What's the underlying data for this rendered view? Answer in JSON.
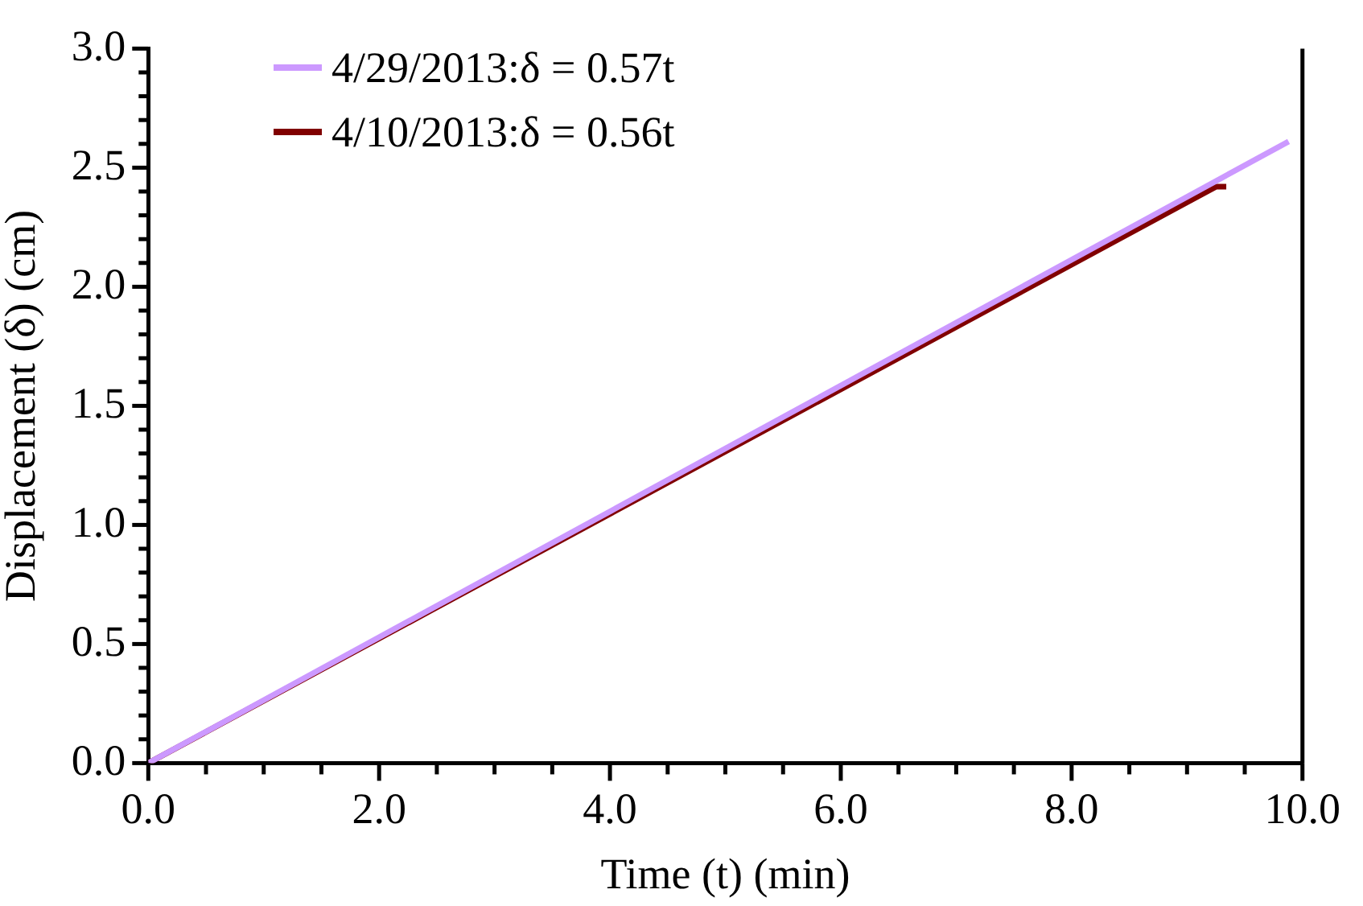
{
  "chart_data": {
    "type": "line",
    "xlabel": "Time (t) (min)",
    "ylabel": "Displacement (δ) (cm)",
    "legend": "top left",
    "grid": false,
    "marker": "none",
    "line_style": "solid",
    "xlim": [
      0,
      10
    ],
    "ylim": [
      0,
      3
    ],
    "xticks": [
      {
        "value": 0,
        "label": "0.0"
      },
      {
        "value": 0.5,
        "label": null
      },
      {
        "value": 1,
        "label": null
      },
      {
        "value": 1.5,
        "label": null
      },
      {
        "value": 2,
        "label": "2.0"
      },
      {
        "value": 2.5,
        "label": null
      },
      {
        "value": 3,
        "label": null
      },
      {
        "value": 3.5,
        "label": null
      },
      {
        "value": 4,
        "label": "4.0"
      },
      {
        "value": 4.5,
        "label": null
      },
      {
        "value": 5,
        "label": null
      },
      {
        "value": 5.5,
        "label": null
      },
      {
        "value": 6,
        "label": "6.0"
      },
      {
        "value": 6.5,
        "label": null
      },
      {
        "value": 7,
        "label": null
      },
      {
        "value": 7.5,
        "label": null
      },
      {
        "value": 8,
        "label": "8.0"
      },
      {
        "value": 8.5,
        "label": null
      },
      {
        "value": 9,
        "label": null
      },
      {
        "value": 9.5,
        "label": null
      },
      {
        "value": 10,
        "label": "10.0"
      }
    ],
    "yticks": [
      {
        "value": 0,
        "label": "0.0"
      },
      {
        "value": 0.1,
        "label": null
      },
      {
        "value": 0.2,
        "label": null
      },
      {
        "value": 0.3,
        "label": null
      },
      {
        "value": 0.4,
        "label": null
      },
      {
        "value": 0.5,
        "label": "0.5"
      },
      {
        "value": 0.6,
        "label": null
      },
      {
        "value": 0.7,
        "label": null
      },
      {
        "value": 0.8,
        "label": null
      },
      {
        "value": 0.9,
        "label": null
      },
      {
        "value": 1,
        "label": "1.0"
      },
      {
        "value": 1.1,
        "label": null
      },
      {
        "value": 1.2,
        "label": null
      },
      {
        "value": 1.3,
        "label": null
      },
      {
        "value": 1.4,
        "label": null
      },
      {
        "value": 1.5,
        "label": "1.5"
      },
      {
        "value": 1.6,
        "label": null
      },
      {
        "value": 1.7,
        "label": null
      },
      {
        "value": 1.8,
        "label": null
      },
      {
        "value": 1.9,
        "label": null
      },
      {
        "value": 2,
        "label": "2.0"
      },
      {
        "value": 2.1,
        "label": null
      },
      {
        "value": 2.2,
        "label": null
      },
      {
        "value": 2.3,
        "label": null
      },
      {
        "value": 2.4,
        "label": null
      },
      {
        "value": 2.5,
        "label": "2.5"
      },
      {
        "value": 2.6,
        "label": null
      },
      {
        "value": 2.7,
        "label": null
      },
      {
        "value": 2.8,
        "label": null
      },
      {
        "value": 2.9,
        "label": null
      },
      {
        "value": 3,
        "label": "3.0"
      }
    ],
    "series": [
      {
        "name": "4/29/2013:δ = 0.57t",
        "color": "#cc99ff",
        "x": [
          0,
          9.88
        ],
        "values": [
          0,
          2.61
        ]
      },
      {
        "name": "4/10/2013:δ = 0.56t",
        "color": "#800000",
        "x": [
          0,
          9.25,
          9.34
        ],
        "values": [
          0,
          2.42,
          2.42
        ]
      }
    ]
  }
}
